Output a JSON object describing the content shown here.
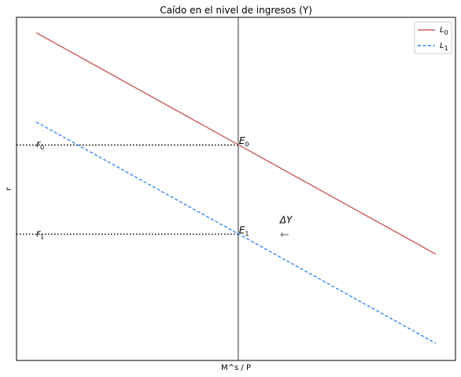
{
  "chart_data": {
    "type": "line",
    "title": "Caído en el nivel de ingresos (Y)",
    "xlabel": "M^s / P",
    "ylabel": "r",
    "xlim": [
      0,
      10
    ],
    "ylim": [
      0,
      10
    ],
    "grid": false,
    "legend_position": "top-right",
    "series": [
      {
        "name": "L₀",
        "name_base": "L",
        "name_sub": "0",
        "color": "#cd5c5c",
        "style": "solid",
        "x": [
          0.45,
          9.55
        ],
        "y": [
          9.55,
          3.1
        ]
      },
      {
        "name": "L₁",
        "name_base": "L",
        "name_sub": "1",
        "color": "#3388ee",
        "style": "dashed",
        "x": [
          0.45,
          9.55
        ],
        "y": [
          6.95,
          0.5
        ]
      }
    ],
    "money_supply_x": 5.05,
    "equilibria": [
      {
        "name": "E0",
        "base": "E",
        "sub": "0",
        "x": 5.05,
        "y": 6.28
      },
      {
        "name": "E1",
        "base": "E",
        "sub": "1",
        "x": 5.05,
        "y": 3.68
      }
    ],
    "rate_labels": [
      {
        "base": "r",
        "sub": "0",
        "y": 6.28
      },
      {
        "base": "r",
        "sub": "1",
        "y": 3.68
      }
    ],
    "annotation": {
      "text": "ΔY",
      "arrow": "←",
      "x": 6.0,
      "y": 4.0
    }
  }
}
